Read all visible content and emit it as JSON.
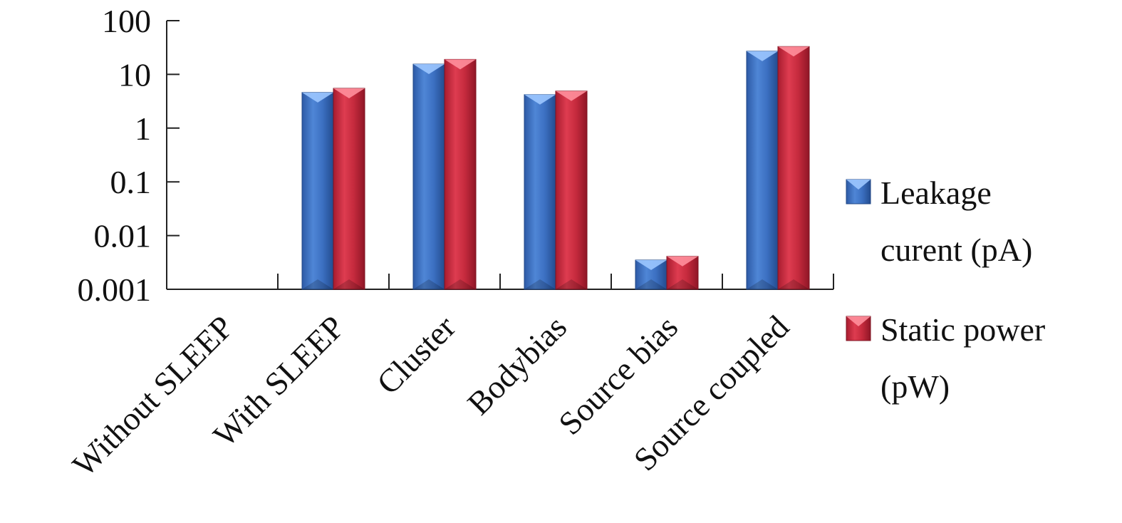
{
  "chart_data": {
    "type": "bar",
    "y_scale": "log",
    "ylim": [
      0.001,
      100
    ],
    "y_ticks": [
      "100",
      "10",
      "1",
      "0.1",
      "0.01",
      "0.001"
    ],
    "y_tick_values": [
      100,
      10,
      1,
      0.1,
      0.01,
      0.001
    ],
    "categories": [
      "Without SLEEP",
      "With SLEEP",
      "Cluster",
      "Bodybias",
      "Source bias",
      "Source coupled"
    ],
    "series": [
      {
        "name": "Leakage curent (pA)",
        "legend_lines": [
          "Leakage",
          "curent (pA)"
        ],
        "color": "#3f6fbf",
        "values": [
          null,
          4.6,
          15.5,
          4.2,
          0.0035,
          27
        ]
      },
      {
        "name": "Static power (pW)",
        "legend_lines": [
          "Static power",
          "(pW)"
        ],
        "color": "#c8283c",
        "values": [
          null,
          5.5,
          19,
          4.9,
          0.0041,
          33
        ]
      }
    ],
    "legend_position": "right",
    "grid": false,
    "title": "",
    "xlabel": "",
    "ylabel": ""
  }
}
